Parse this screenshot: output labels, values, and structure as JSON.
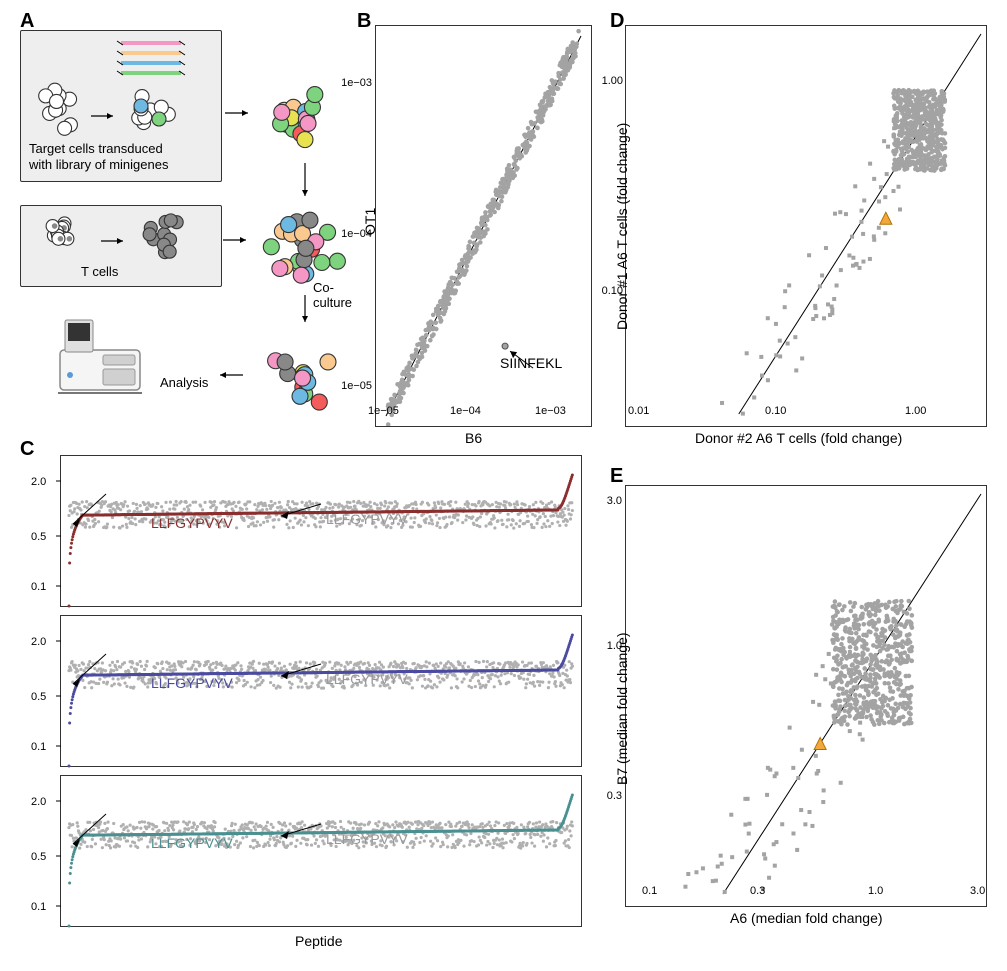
{
  "panels": {
    "A": {
      "label": "A"
    },
    "B": {
      "label": "B"
    },
    "C": {
      "label": "C"
    },
    "D": {
      "label": "D"
    },
    "E": {
      "label": "E"
    }
  },
  "panelA": {
    "text1": "Target cells transduced",
    "text2": "with library of minigenes",
    "text3": "T cells",
    "text4": "Co-culture",
    "text5": "Analysis",
    "minigene_colors": [
      "#f497c5",
      "#f9c98f",
      "#6db9e2",
      "#7ed37e"
    ],
    "cell_colors": [
      "#ffffff",
      "#f497c5",
      "#f9c98f",
      "#6db9e2",
      "#7ed37e",
      "#f45b5b",
      "#e8e250"
    ],
    "tcell_color": "#888888",
    "box_bg": "#eeeeee"
  },
  "panelB": {
    "type": "scatter",
    "xlabel": "B6",
    "ylabel": "OT1",
    "xticks": [
      "1e−05",
      "1e−04",
      "1e−03"
    ],
    "yticks": [
      "1e−05",
      "1e−04",
      "1e−03"
    ],
    "xlim": [
      1e-05,
      0.003
    ],
    "ylim": [
      1e-05,
      0.003
    ],
    "point_color": "#a3a3a3",
    "annotation": "SIINFEKL",
    "n_points": 500,
    "siinfekl_xy": [
      0.00033,
      2.8e-05
    ]
  },
  "panelC": {
    "type": "rank_plot",
    "xlabel": "Peptide",
    "yticks": [
      "0.1",
      "0.5",
      "2.0"
    ],
    "subpanels": [
      {
        "color": "#8b2e2e",
        "peptide_label": "LLFGYPVYV",
        "gray_label": "LLFGYPVYV"
      },
      {
        "color": "#4b4ba0",
        "peptide_label": "LLFGYPVYV",
        "gray_label": "LLFGYPVYV"
      },
      {
        "color": "#4b9090",
        "peptide_label": "LLFGYPVYV",
        "gray_label": "LLFGYPVYV"
      }
    ],
    "gray_color": "#b0b0b0",
    "gray_label_color": "#999999",
    "n_points": 800
  },
  "panelD": {
    "type": "scatter",
    "xlabel": "Donor #2 A6 T cells (fold change)",
    "ylabel": "Donor #1 A6 T cells (fold change)",
    "xticks": [
      "0.01",
      "0.10",
      "1.00"
    ],
    "yticks": [
      "0.10",
      "1.00"
    ],
    "xlim": [
      0.007,
      3
    ],
    "ylim": [
      0.04,
      3
    ],
    "point_color": "#a3a3a3",
    "highlight_color": "#f2a93b",
    "highlight_xy": [
      0.55,
      0.37
    ],
    "n_points": 700
  },
  "panelE": {
    "type": "scatter",
    "xlabel": "A6 (median fold change)",
    "ylabel": "B7 (median fold change)",
    "xticks": [
      "0.1",
      "0.3",
      "1.0",
      "3.0"
    ],
    "yticks": [
      "0.3",
      "1.0",
      "3.0"
    ],
    "xlim": [
      0.07,
      3.5
    ],
    "ylim": [
      0.18,
      3.5
    ],
    "point_color": "#a3a3a3",
    "highlight_color": "#f2a93b",
    "highlight_xy": [
      0.55,
      0.55
    ],
    "n_points": 700
  },
  "colors": {
    "axis": "#000000",
    "bg": "#ffffff",
    "panel_label_fontsize": 20,
    "axis_label_fontsize": 14,
    "tick_fontsize": 11
  }
}
